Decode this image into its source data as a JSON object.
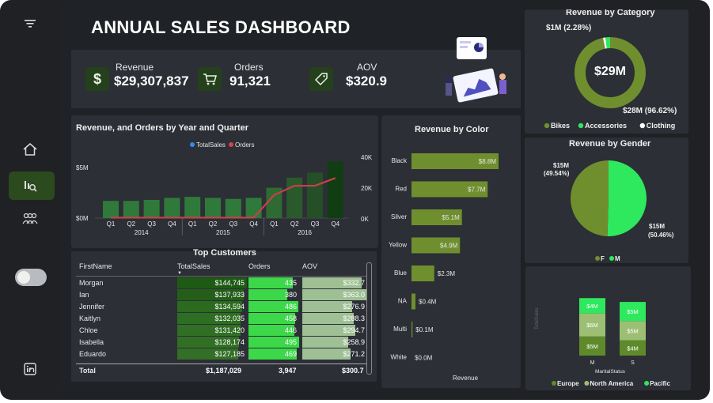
{
  "title": "ANNUAL SALES DASHBOARD",
  "kpis": [
    {
      "label": "Revenue",
      "value": "$29,307,837",
      "icon": "dollar-icon"
    },
    {
      "label": "Orders",
      "value": "91,321",
      "icon": "cart-icon"
    },
    {
      "label": "AOV",
      "value": "$320.9",
      "icon": "tag-icon"
    }
  ],
  "sidebar": {
    "icons": [
      "filter-icon",
      "home-icon",
      "report-icon",
      "people-icon",
      "linkedin-icon"
    ]
  },
  "rev_orders_chart": {
    "title": "Revenue, and Orders by Year and Quarter",
    "legend": [
      "TotalSales",
      "Orders"
    ],
    "y_left_ticks": [
      "$5M",
      "$0M"
    ],
    "y_right_ticks": [
      "40K",
      "20K",
      "0K"
    ],
    "quarters": [
      "Q1",
      "Q2",
      "Q3",
      "Q4",
      "Q1",
      "Q2",
      "Q3",
      "Q4",
      "Q1",
      "Q2",
      "Q3",
      "Q4"
    ],
    "years": [
      "2014",
      "2015",
      "2016"
    ],
    "sales_m": [
      1.7,
      1.7,
      1.8,
      2.0,
      2.1,
      2.0,
      1.9,
      2.0,
      3.0,
      4.0,
      4.5,
      5.6
    ],
    "orders_k": [
      0.3,
      0.3,
      0.3,
      0.3,
      0.3,
      0.3,
      0.3,
      0.3,
      15,
      21,
      21,
      26
    ]
  },
  "color_chart": {
    "title": "Revenue by Color",
    "xlabel": "Revenue",
    "categories": [
      "Black",
      "Red",
      "Silver",
      "Yellow",
      "Blue",
      "NA",
      "Multi",
      "White"
    ],
    "values_m": [
      8.8,
      7.7,
      5.1,
      4.9,
      2.3,
      0.4,
      0.1,
      0.0
    ],
    "labels": [
      "$8.8M",
      "$7.7M",
      "$5.1M",
      "$4.9M",
      "$2.3M",
      "$0.4M",
      "$0.1M",
      "$0.0M"
    ]
  },
  "category_chart": {
    "title": "Revenue by Category",
    "center": "$29M",
    "label_small": "$1M (2.28%)",
    "label_big": "$28M (96.62%)",
    "legend": [
      "Bikes",
      "Accessories",
      "Clothing"
    ],
    "colors": [
      "#6f8f2f",
      "#2ee85e",
      "#ffffff"
    ],
    "shares": [
      96.62,
      2.28,
      1.1
    ]
  },
  "gender_chart": {
    "title": "Revenue by Gender",
    "label_f": "$15M",
    "pct_f": "(49.54%)",
    "label_m": "$15M",
    "pct_m": "(50.46%)",
    "legend": [
      "F",
      "M"
    ],
    "colors": [
      "#6f8f2f",
      "#2ee85e"
    ],
    "shares": [
      49.54,
      50.46
    ]
  },
  "marital_chart": {
    "ylabel": "TotalSales",
    "xlabel": "MaritalStatus",
    "categories": [
      "M",
      "S"
    ],
    "legend": [
      "Europe",
      "North America",
      "Pacific"
    ],
    "colors": [
      "#5f8a2b",
      "#9dbf74",
      "#2ee85e"
    ],
    "segments": [
      [
        "$5M",
        "$6M",
        "$4M"
      ],
      [
        "$4M",
        "$5M",
        "$5M"
      ]
    ],
    "values_m": [
      [
        5,
        6,
        4
      ],
      [
        4,
        5,
        5
      ]
    ]
  },
  "customers": {
    "title": "Top Customers",
    "headers": [
      "FirstName",
      "TotalSales",
      "Orders",
      "AOV"
    ],
    "rows": [
      [
        "Morgan",
        "$144,745",
        "435",
        "$332.7"
      ],
      [
        "Ian",
        "$137,933",
        "380",
        "$363.0"
      ],
      [
        "Jennifer",
        "$134,594",
        "486",
        "$276.9"
      ],
      [
        "Kaitlyn",
        "$132,035",
        "458",
        "$288.3"
      ],
      [
        "Chloe",
        "$131,420",
        "446",
        "$294.7"
      ],
      [
        "Isabella",
        "$128,174",
        "495",
        "$258.9"
      ],
      [
        "Eduardo",
        "$127,185",
        "469",
        "$271.2"
      ]
    ],
    "total": [
      "Total",
      "$1,187,029",
      "3,947",
      "$300.7"
    ]
  }
}
